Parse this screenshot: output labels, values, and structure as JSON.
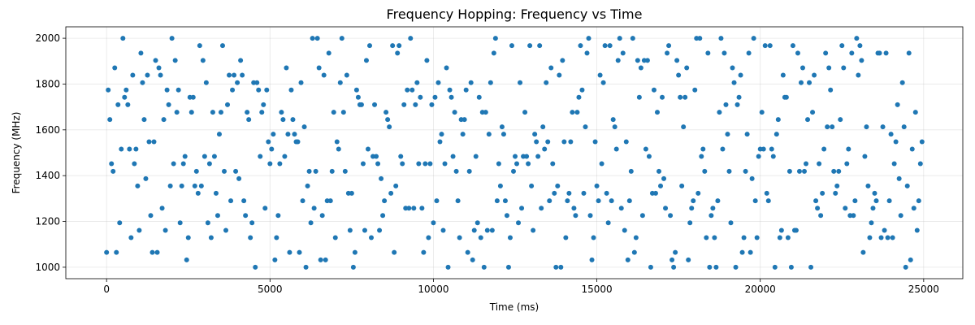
{
  "chart_data": {
    "type": "scatter",
    "title": "Frequency Hopping: Frequency vs Time",
    "xlabel": "Time (ms)",
    "ylabel": "Frequency (MHz)",
    "color": "#1f77b4",
    "grid": true,
    "xlim": [
      -1247.5,
      26197.5
    ],
    "ylim": [
      950,
      2050
    ],
    "xticks": [
      0,
      5000,
      10000,
      15000,
      20000,
      25000
    ],
    "yticks": [
      1000,
      1200,
      1400,
      1600,
      1800,
      2000
    ],
    "x": [
      0,
      50,
      100,
      150,
      200,
      250,
      300,
      350,
      400,
      450,
      500,
      550,
      600,
      650,
      700,
      750,
      800,
      850,
      900,
      950,
      1000,
      1050,
      1100,
      1150,
      1200,
      1250,
      1300,
      1350,
      1400,
      1450,
      1500,
      1550,
      1600,
      1650,
      1700,
      1750,
      1800,
      1850,
      1900,
      1950,
      2000,
      2050,
      2100,
      2150,
      2200,
      2250,
      2300,
      2350,
      2400,
      2450,
      2500,
      2550,
      2600,
      2650,
      2700,
      2750,
      2800,
      2850,
      2900,
      2950,
      3000,
      3050,
      3100,
      3150,
      3200,
      3250,
      3300,
      3350,
      3400,
      3450,
      3500,
      3550,
      3600,
      3650,
      3700,
      3750,
      3800,
      3850,
      3900,
      3950,
      4000,
      4050,
      4100,
      4150,
      4200,
      4250,
      4300,
      4350,
      4400,
      4450,
      4500,
      4550,
      4600,
      4650,
      4700,
      4750,
      4800,
      4850,
      4900,
      4950,
      5000,
      5050,
      5100,
      5150,
      5200,
      5250,
      5300,
      5350,
      5400,
      5450,
      5500,
      5550,
      5600,
      5650,
      5700,
      5750,
      5800,
      5850,
      5900,
      5950,
      6000,
      6050,
      6100,
      6150,
      6200,
      6250,
      6300,
      6350,
      6400,
      6450,
      6500,
      6550,
      6600,
      6650,
      6700,
      6750,
      6800,
      6850,
      6900,
      6950,
      7000,
      7050,
      7100,
      7150,
      7200,
      7250,
      7300,
      7350,
      7400,
      7450,
      7500,
      7550,
      7600,
      7650,
      7700,
      7750,
      7800,
      7850,
      7900,
      7950,
      8000,
      8050,
      8100,
      8150,
      8200,
      8250,
      8300,
      8350,
      8400,
      8450,
      8500,
      8550,
      8600,
      8650,
      8700,
      8750,
      8800,
      8850,
      8900,
      8950,
      9000,
      9050,
      9100,
      9150,
      9200,
      9250,
      9300,
      9350,
      9400,
      9450,
      9500,
      9550,
      9600,
      9650,
      9700,
      9750,
      9800,
      9850,
      9900,
      9950,
      10000,
      10050,
      10100,
      10150,
      10200,
      10250,
      10300,
      10350,
      10400,
      10450,
      10500,
      10550,
      10600,
      10650,
      10700,
      10750,
      10800,
      10850,
      10900,
      10950,
      11000,
      11050,
      11100,
      11150,
      11200,
      11250,
      11300,
      11350,
      11400,
      11450,
      11500,
      11550,
      11600,
      11650,
      11700,
      11750,
      11800,
      11850,
      11900,
      11950,
      12000,
      12050,
      12100,
      12150,
      12200,
      12250,
      12300,
      12350,
      12400,
      12450,
      12500,
      12550,
      12600,
      12650,
      12700,
      12750,
      12800,
      12850,
      12900,
      12950,
      13000,
      13050,
      13100,
      13150,
      13200,
      13250,
      13300,
      13350,
      13400,
      13450,
      13500,
      13550,
      13600,
      13650,
      13700,
      13750,
      13800,
      13850,
      13900,
      13950,
      14000,
      14050,
      14100,
      14150,
      14200,
      14250,
      14300,
      14350,
      14400,
      14450,
      14500,
      14550,
      14600,
      14650,
      14700,
      14750,
      14800,
      14850,
      14900,
      14950,
      15000,
      15050,
      15100,
      15150,
      15200,
      15250,
      15300,
      15350,
      15400,
      15450,
      15500,
      15550,
      15600,
      15650,
      15700,
      15750,
      15800,
      15850,
      15900,
      15950,
      16000,
      16050,
      16100,
      16150,
      16200,
      16250,
      16300,
      16350,
      16400,
      16450,
      16500,
      16550,
      16600,
      16650,
      16700,
      16750,
      16800,
      16850,
      16900,
      16950,
      17000,
      17050,
      17100,
      17150,
      17200,
      17250,
      17300,
      17350,
      17400,
      17450,
      17500,
      17550,
      17600,
      17650,
      17700,
      17750,
      17800,
      17850,
      17900,
      17950,
      18000,
      18050,
      18100,
      18150,
      18200,
      18250,
      18300,
      18350,
      18400,
      18450,
      18500,
      18550,
      18600,
      18650,
      18700,
      18750,
      18800,
      18850,
      18900,
      18950,
      19000,
      19050,
      19100,
      19150,
      19200,
      19250,
      19300,
      19350,
      19400,
      19450,
      19500,
      19550,
      19600,
      19650,
      19700,
      19750,
      19800,
      19850,
      19900,
      19950,
      20000,
      20050,
      20100,
      20150,
      20200,
      20250,
      20300,
      20350,
      20400,
      20450,
      20500,
      20550,
      20600,
      20650,
      20700,
      20750,
      20800,
      20850,
      20900,
      20950,
      21000,
      21050,
      21100,
      21150,
      21200,
      21250,
      21300,
      21350,
      21400,
      21450,
      21500,
      21550,
      21600,
      21650,
      21700,
      21750,
      21800,
      21850,
      21900,
      21950,
      22000,
      22050,
      22100,
      22150,
      22200,
      22250,
      22300,
      22350,
      22400,
      22450,
      22500,
      22550,
      22600,
      22650,
      22700,
      22750,
      22800,
      22850,
      22900,
      22950,
      23000,
      23050,
      23100,
      23150,
      23200,
      23250,
      23300,
      23350,
      23400,
      23450,
      23500,
      23550,
      23600,
      23650,
      23700,
      23750,
      23800,
      23850,
      23900,
      23950,
      24000,
      24050,
      24100,
      24150,
      24200,
      24250,
      24300,
      24350,
      24400,
      24450,
      24500,
      24550,
      24600,
      24650,
      24700,
      24750,
      24800,
      24850,
      24900,
      24950
    ],
    "values": [
      1065,
      1774,
      1645,
      1452,
      1419,
      1871,
      1065,
      1710,
      1194,
      1516,
      2000,
      1742,
      1774,
      1710,
      1516,
      1129,
      1839,
      1452,
      1516,
      1355,
      1161,
      1935,
      1806,
      1645,
      1387,
      1839,
      1548,
      1226,
      1065,
      1548,
      1903,
      1065,
      1871,
      1839,
      1258,
      1645,
      1161,
      1774,
      1710,
      1355,
      2000,
      1452,
      1903,
      1677,
      1774,
      1194,
      1355,
      1452,
      1484,
      1032,
      1129,
      1742,
      1677,
      1742,
      1355,
      1419,
      1323,
      1968,
      1355,
      1903,
      1484,
      1806,
      1194,
      1452,
      1129,
      1677,
      1484,
      1323,
      1226,
      1581,
      1677,
      1968,
      1419,
      1161,
      1710,
      1839,
      1290,
      1774,
      1839,
      1419,
      1806,
      1387,
      1903,
      1839,
      1290,
      1226,
      1677,
      1645,
      1129,
      1194,
      1806,
      1000,
      1806,
      1774,
      1484,
      1677,
      1710,
      1258,
      1774,
      1548,
      1452,
      1516,
      1581,
      1032,
      1129,
      1226,
      1452,
      1677,
      1645,
      1484,
      1871,
      1581,
      1065,
      1774,
      1645,
      1581,
      1548,
      1548,
      1065,
      1806,
      1290,
      1613,
      1000,
      1355,
      1419,
      1194,
      2000,
      1258,
      1419,
      2000,
      1871,
      1032,
      1226,
      1839,
      1032,
      1290,
      1935,
      1290,
      1419,
      1677,
      1129,
      1548,
      1516,
      1806,
      2000,
      1677,
      1419,
      1839,
      1323,
      1161,
      1323,
      1000,
      1065,
      1774,
      1742,
      1710,
      1710,
      1452,
      1161,
      1903,
      1516,
      1968,
      1129,
      1484,
      1710,
      1484,
      1452,
      1161,
      1387,
      1226,
      1290,
      1677,
      1645,
      1613,
      1323,
      1968,
      1065,
      1355,
      1935,
      1968,
      1484,
      1452,
      1710,
      1258,
      1774,
      1258,
      2000,
      1774,
      1258,
      1710,
      1806,
      1452,
      1742,
      1258,
      1065,
      1452,
      1903,
      1129,
      1452,
      1710,
      1194,
      1742,
      1290,
      1806,
      1548,
      1581,
      1161,
      1452,
      1871,
      1000,
      1774,
      1742,
      1484,
      1677,
      1419,
      1290,
      1129,
      1645,
      1581,
      1645,
      1774,
      1065,
      1419,
      1806,
      1032,
      1161,
      1484,
      1194,
      1742,
      1129,
      1677,
      1000,
      1677,
      1161,
      1581,
      1806,
      1161,
      1935,
      2000,
      1290,
      1452,
      1355,
      1613,
      1581,
      1290,
      1226,
      1000,
      1129,
      1968,
      1419,
      1484,
      1452,
      1194,
      1806,
      1258,
      1484,
      1677,
      1484,
      1452,
      1968,
      1355,
      1161,
      1581,
      1548,
      1484,
      1968,
      1258,
      1613,
      1516,
      1806,
      1548,
      1290,
      1871,
      1452,
      1323,
      1000,
      1355,
      1839,
      1000,
      1903,
      1548,
      1129,
      1290,
      1323,
      1548,
      1677,
      1258,
      1226,
      1677,
      1742,
      1968,
      1774,
      1323,
      1613,
      1935,
      2000,
      1226,
      1032,
      1129,
      1548,
      1355,
      1290,
      1839,
      1452,
      1806,
      1968,
      1323,
      1194,
      1968,
      1290,
      1645,
      1613,
      1516,
      1903,
      2000,
      1258,
      1935,
      1161,
      1548,
      1032,
      1290,
      1419,
      2000,
      1065,
      1129,
      1903,
      1742,
      1871,
      1226,
      1903,
      1516,
      1903,
      1484,
      1000,
      1323,
      1774,
      1323,
      1677,
      1419,
      1355,
      1742,
      1387,
      1258,
      1935,
      1968,
      1226,
      1032,
      1000,
      1065,
      1903,
      1839,
      1742,
      1355,
      1613,
      1742,
      1871,
      1032,
      1194,
      1258,
      1290,
      1774,
      2000,
      1323,
      2000,
      1484,
      1516,
      1419,
      1129,
      1935,
      1000,
      1226,
      1258,
      1129,
      1000,
      1290,
      1677,
      2000,
      1516,
      1935,
      1710,
      1581,
      1419,
      1194,
      1871,
      1806,
      1000,
      1710,
      1742,
      1839,
      1065,
      1129,
      1419,
      1581,
      1935,
      1065,
      1387,
      2000,
      1290,
      1129,
      1484,
      1516,
      1677,
      1516,
      1968,
      1323,
      1290,
      1968,
      1516,
      1484,
      1000,
      1581,
      1645,
      1129,
      1161,
      1839,
      1742,
      1742,
      1129,
      1419,
      1000,
      1968,
      1161,
      1161,
      1935,
      1419,
      1806,
      1871,
      1419,
      1452,
      1645,
      1806,
      1000,
      1677,
      1839,
      1290,
      1258,
      1452,
      1226,
      1323,
      1516,
      1935,
      1613,
      1871,
      1774,
      1613,
      1419,
      1323,
      1355,
      1419,
      1645,
      1968,
      1871,
      1258,
      1452,
      1516,
      1226,
      1935,
      1226,
      1290,
      2000,
      1839,
      1968,
      1903,
      1065,
      1484,
      1613,
      1355,
      1129,
      1194,
      1258,
      1323,
      1290,
      1935,
      1935,
      1129,
      1613,
      1161,
      1935,
      1129,
      1290,
      1581,
      1129,
      1452,
      1548,
      1710,
      1387,
      1226,
      1806,
      1613,
      1000,
      1355,
      1935,
      1032,
      1516,
      1258,
      1677,
      1161,
      1290,
      1452,
      1548
    ]
  }
}
